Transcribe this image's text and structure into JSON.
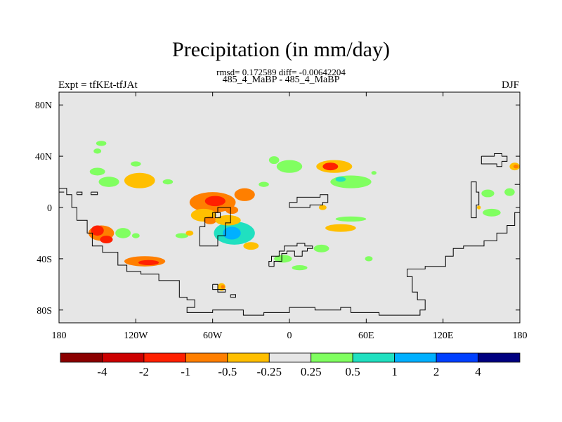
{
  "header": {
    "title": "Precipitation (in mm/day)",
    "stats": "rmsd= 0.172589 diff= -0.00642204",
    "comparison": "485_4_MaBP - 485_4_MaBP",
    "experiment": "Expt = tfKEt-tfJAt",
    "season": "DJF"
  },
  "chart_data": {
    "type": "heatmap",
    "title": "Precipitation (in mm/day)",
    "lon_range": [
      -180,
      180
    ],
    "lat_range": [
      -90,
      90
    ],
    "x_ticks": [
      {
        "value": -180,
        "label": "180"
      },
      {
        "value": -120,
        "label": "120W"
      },
      {
        "value": -60,
        "label": "60W"
      },
      {
        "value": 0,
        "label": "0"
      },
      {
        "value": 60,
        "label": "60E"
      },
      {
        "value": 120,
        "label": "120E"
      },
      {
        "value": 180,
        "label": "180"
      }
    ],
    "y_ticks": [
      {
        "value": 80,
        "label": "80N"
      },
      {
        "value": 40,
        "label": "40N"
      },
      {
        "value": 0,
        "label": "0"
      },
      {
        "value": -40,
        "label": "40S"
      },
      {
        "value": -80,
        "label": "80S"
      }
    ],
    "background_color": "#e6e6e6",
    "colorbar": {
      "colors": [
        "#8b0000",
        "#cc0000",
        "#ff2000",
        "#ff7f00",
        "#ffbf00",
        "#e6e6e6",
        "#80ff60",
        "#20e0c0",
        "#00b0ff",
        "#0040ff",
        "#000080"
      ],
      "labels": [
        "-4",
        "-2",
        "-1",
        "-0.5",
        "-0.25",
        "0.25",
        "0.5",
        "1",
        "2",
        "4"
      ]
    },
    "anomalies": [
      {
        "lon": -147,
        "lat": -20,
        "rlon": 10,
        "rlat": 6,
        "level": "-0.5"
      },
      {
        "lon": -150,
        "lat": -18,
        "rlon": 5,
        "rlat": 4,
        "level": "-1"
      },
      {
        "lon": -143,
        "lat": -25,
        "rlon": 5,
        "rlat": 3,
        "level": "-1"
      },
      {
        "lon": -130,
        "lat": -20,
        "rlon": 6,
        "rlat": 4,
        "level": "0.25"
      },
      {
        "lon": -113,
        "lat": -42,
        "rlon": 16,
        "rlat": 4,
        "level": "-0.5"
      },
      {
        "lon": -110,
        "lat": -43,
        "rlon": 8,
        "rlat": 2,
        "level": "-1"
      },
      {
        "lon": -117,
        "lat": 21,
        "rlon": 12,
        "rlat": 6,
        "level": "-0.25"
      },
      {
        "lon": -141,
        "lat": 20,
        "rlon": 8,
        "rlat": 4,
        "level": "0.25"
      },
      {
        "lon": -150,
        "lat": 28,
        "rlon": 6,
        "rlat": 3,
        "level": "0.25"
      },
      {
        "lon": -147,
        "lat": 50,
        "rlon": 4,
        "rlat": 2,
        "level": "0.25"
      },
      {
        "lon": -150,
        "lat": 44,
        "rlon": 3,
        "rlat": 2,
        "level": "0.25"
      },
      {
        "lon": -120,
        "lat": 34,
        "rlon": 4,
        "rlat": 2,
        "level": "0.25"
      },
      {
        "lon": -60,
        "lat": 4,
        "rlon": 18,
        "rlat": 8,
        "level": "-0.5"
      },
      {
        "lon": -58,
        "lat": 5,
        "rlon": 8,
        "rlat": 4,
        "level": "-1"
      },
      {
        "lon": -35,
        "lat": 10,
        "rlon": 8,
        "rlat": 5,
        "level": "-0.5"
      },
      {
        "lon": -67,
        "lat": -6,
        "rlon": 10,
        "rlat": 5,
        "level": "-0.25"
      },
      {
        "lon": -62,
        "lat": -10,
        "rlon": 5,
        "rlat": 3,
        "level": "-0.5"
      },
      {
        "lon": -43,
        "lat": -20,
        "rlon": 16,
        "rlat": 9,
        "level": "0.5"
      },
      {
        "lon": -45,
        "lat": -20,
        "rlon": 7,
        "rlat": 5,
        "level": "1"
      },
      {
        "lon": -48,
        "lat": -10,
        "rlon": 10,
        "rlat": 4,
        "level": "-0.25"
      },
      {
        "lon": -45,
        "lat": -2,
        "rlon": 5,
        "rlat": 3,
        "level": "-0.5"
      },
      {
        "lon": -53,
        "lat": -62,
        "rlon": 3,
        "rlat": 3,
        "level": "-0.25"
      },
      {
        "lon": -52,
        "lat": -62,
        "rlon": 1.5,
        "rlat": 1.5,
        "level": "-0.5"
      },
      {
        "lon": -84,
        "lat": -22,
        "rlon": 5,
        "rlat": 2,
        "level": "0.25"
      },
      {
        "lon": 35,
        "lat": 32,
        "rlon": 14,
        "rlat": 5,
        "level": "-0.25"
      },
      {
        "lon": 32,
        "lat": 32,
        "rlon": 6,
        "rlat": 3,
        "level": "-1"
      },
      {
        "lon": 48,
        "lat": 20,
        "rlon": 16,
        "rlat": 5,
        "level": "0.25"
      },
      {
        "lon": 40,
        "lat": 22,
        "rlon": 4,
        "rlat": 2,
        "level": "0.5"
      },
      {
        "lon": 0,
        "lat": 32,
        "rlon": 10,
        "rlat": 5,
        "level": "0.25"
      },
      {
        "lon": -12,
        "lat": 37,
        "rlon": 4,
        "rlat": 3,
        "level": "0.25"
      },
      {
        "lon": 40,
        "lat": -16,
        "rlon": 12,
        "rlat": 3,
        "level": "-0.25"
      },
      {
        "lon": 48,
        "lat": -9,
        "rlon": 12,
        "rlat": 2,
        "level": "0.25"
      },
      {
        "lon": 25,
        "lat": -32,
        "rlon": 6,
        "rlat": 3,
        "level": "0.25"
      },
      {
        "lon": -5,
        "lat": -40,
        "rlon": 7,
        "rlat": 3,
        "level": "0.25"
      },
      {
        "lon": 8,
        "lat": -47,
        "rlon": 6,
        "rlat": 2,
        "level": "0.25"
      },
      {
        "lon": -30,
        "lat": -30,
        "rlon": 6,
        "rlat": 3,
        "level": "-0.25"
      },
      {
        "lon": 26,
        "lat": 0,
        "rlon": 3,
        "rlat": 2,
        "level": "-0.25"
      },
      {
        "lon": 158,
        "lat": -4,
        "rlon": 7,
        "rlat": 3,
        "level": "0.25"
      },
      {
        "lon": 155,
        "lat": 11,
        "rlon": 5,
        "rlat": 3,
        "level": "0.25"
      },
      {
        "lon": 172,
        "lat": 12,
        "rlon": 4,
        "rlat": 3,
        "level": "0.25"
      },
      {
        "lon": 176,
        "lat": 32,
        "rlon": 4,
        "rlat": 3,
        "level": "-0.25"
      },
      {
        "lon": 177,
        "lat": 32,
        "rlon": 2,
        "rlat": 1.5,
        "level": "-0.5"
      },
      {
        "lon": 148,
        "lat": 0,
        "rlon": 1.5,
        "rlat": 1.5,
        "level": "-0.25"
      },
      {
        "lon": -78,
        "lat": -20,
        "rlon": 3,
        "rlat": 2,
        "level": "-0.25"
      },
      {
        "lon": -120,
        "lat": -22,
        "rlon": 3,
        "rlat": 2,
        "level": "0.25"
      },
      {
        "lon": 62,
        "lat": -40,
        "rlon": 3,
        "rlat": 2,
        "level": "0.25"
      },
      {
        "lon": -95,
        "lat": 20,
        "rlon": 4,
        "rlat": 2,
        "level": "0.25"
      },
      {
        "lon": -20,
        "lat": 18,
        "rlon": 4,
        "rlat": 2,
        "level": "0.25"
      },
      {
        "lon": 66,
        "lat": 27,
        "rlon": 2,
        "rlat": 1.5,
        "level": "0.25"
      }
    ],
    "coastlines": [
      [
        [
          -180,
          15
        ],
        [
          -174,
          15
        ],
        [
          -174,
          10
        ],
        [
          -170,
          10
        ],
        [
          -170,
          0
        ],
        [
          -166,
          0
        ],
        [
          -166,
          -10
        ],
        [
          -158,
          -10
        ],
        [
          -158,
          -20
        ],
        [
          -154,
          -20
        ],
        [
          -154,
          -30
        ],
        [
          -146,
          -30
        ],
        [
          -146,
          -35
        ],
        [
          -134,
          -35
        ],
        [
          -134,
          -45
        ],
        [
          -127,
          -45
        ],
        [
          -127,
          -50
        ],
        [
          -116,
          -50
        ],
        [
          -116,
          -52
        ],
        [
          -102,
          -52
        ],
        [
          -102,
          -57
        ],
        [
          -86,
          -57
        ],
        [
          -86,
          -70
        ],
        [
          -80,
          -70
        ],
        [
          -80,
          -72
        ],
        [
          -74,
          -72
        ],
        [
          -74,
          -78
        ],
        [
          -80,
          -78
        ],
        [
          -80,
          -82
        ],
        [
          -60,
          -82
        ],
        [
          -60,
          -80
        ],
        [
          -36,
          -80
        ],
        [
          -36,
          -84
        ],
        [
          -20,
          -84
        ],
        [
          -20,
          -82
        ],
        [
          0,
          -82
        ],
        [
          0,
          -78
        ],
        [
          20,
          -78
        ],
        [
          20,
          -80
        ],
        [
          40,
          -80
        ],
        [
          40,
          -78
        ],
        [
          48,
          -78
        ],
        [
          48,
          -82
        ],
        [
          70,
          -82
        ],
        [
          70,
          -84
        ],
        [
          102,
          -84
        ],
        [
          102,
          -80
        ],
        [
          106,
          -80
        ],
        [
          106,
          -72
        ],
        [
          100,
          -72
        ],
        [
          100,
          -66
        ],
        [
          96,
          -66
        ],
        [
          96,
          -54
        ],
        [
          92,
          -54
        ],
        [
          92,
          -48
        ],
        [
          106,
          -48
        ],
        [
          106,
          -46
        ],
        [
          122,
          -46
        ],
        [
          122,
          -38
        ],
        [
          128,
          -38
        ],
        [
          128,
          -32
        ],
        [
          136,
          -32
        ],
        [
          136,
          -30
        ],
        [
          152,
          -30
        ],
        [
          152,
          -26
        ],
        [
          162,
          -26
        ],
        [
          162,
          -20
        ],
        [
          170,
          -20
        ],
        [
          170,
          -14
        ],
        [
          176,
          -14
        ],
        [
          176,
          -4
        ],
        [
          180,
          -4
        ]
      ],
      [
        [
          -180,
          12
        ],
        [
          -176,
          12
        ]
      ],
      [
        [
          -155,
          12
        ],
        [
          -150,
          12
        ],
        [
          -150,
          10
        ],
        [
          -155,
          10
        ],
        [
          -155,
          12
        ]
      ],
      [
        [
          -70,
          -24
        ],
        [
          -70,
          -15
        ],
        [
          -66,
          -15
        ],
        [
          -66,
          -8
        ],
        [
          -60,
          -8
        ],
        [
          -60,
          -4
        ],
        [
          -56,
          -4
        ],
        [
          -56,
          0
        ],
        [
          -46,
          0
        ],
        [
          -46,
          -12
        ],
        [
          -50,
          -12
        ],
        [
          -50,
          -22
        ],
        [
          -56,
          -22
        ],
        [
          -56,
          -30
        ],
        [
          -70,
          -30
        ],
        [
          -70,
          -24
        ]
      ],
      [
        [
          -58,
          -8
        ],
        [
          -54,
          -8
        ],
        [
          -54,
          -4
        ],
        [
          -58,
          -4
        ],
        [
          -58,
          -8
        ]
      ],
      [
        [
          0,
          4
        ],
        [
          6,
          4
        ],
        [
          6,
          8
        ],
        [
          24,
          8
        ],
        [
          24,
          10
        ],
        [
          30,
          10
        ],
        [
          30,
          4
        ],
        [
          26,
          4
        ],
        [
          26,
          2
        ],
        [
          16,
          2
        ],
        [
          16,
          0
        ],
        [
          0,
          0
        ],
        [
          0,
          4
        ]
      ],
      [
        [
          -16,
          -46
        ],
        [
          -12,
          -46
        ],
        [
          -12,
          -42
        ],
        [
          -6,
          -42
        ],
        [
          -6,
          -36
        ],
        [
          -2,
          -36
        ],
        [
          -2,
          -34
        ],
        [
          4,
          -34
        ],
        [
          4,
          -38
        ],
        [
          10,
          -38
        ],
        [
          10,
          -34
        ],
        [
          14,
          -34
        ],
        [
          14,
          -32
        ],
        [
          18,
          -32
        ],
        [
          18,
          -30
        ],
        [
          12,
          -30
        ],
        [
          12,
          -28
        ],
        [
          6,
          -28
        ],
        [
          6,
          -30
        ],
        [
          -4,
          -30
        ],
        [
          -4,
          -34
        ],
        [
          -8,
          -34
        ],
        [
          -8,
          -38
        ],
        [
          -14,
          -38
        ],
        [
          -14,
          -42
        ],
        [
          -16,
          -42
        ],
        [
          -16,
          -46
        ]
      ],
      [
        [
          -60,
          -60
        ],
        [
          -56,
          -60
        ],
        [
          -56,
          -64
        ],
        [
          -50,
          -64
        ],
        [
          -50,
          -66
        ],
        [
          -56,
          -66
        ],
        [
          -56,
          -64
        ],
        [
          -60,
          -64
        ],
        [
          -60,
          -60
        ]
      ],
      [
        [
          -46,
          -68
        ],
        [
          -42,
          -68
        ],
        [
          -42,
          -70
        ],
        [
          -46,
          -70
        ],
        [
          -46,
          -68
        ]
      ],
      [
        [
          150,
          40
        ],
        [
          160,
          40
        ],
        [
          160,
          42
        ],
        [
          166,
          42
        ],
        [
          166,
          40
        ],
        [
          170,
          40
        ],
        [
          170,
          36
        ],
        [
          166,
          36
        ],
        [
          166,
          32
        ],
        [
          162,
          32
        ],
        [
          162,
          34
        ],
        [
          150,
          34
        ],
        [
          150,
          40
        ]
      ],
      [
        [
          142,
          -8
        ],
        [
          142,
          20
        ],
        [
          146,
          20
        ],
        [
          146,
          12
        ],
        [
          148,
          12
        ],
        [
          148,
          2
        ],
        [
          146,
          2
        ],
        [
          146,
          -8
        ],
        [
          142,
          -8
        ]
      ],
      [
        [
          176,
          18
        ],
        [
          180,
          18
        ]
      ],
      [
        [
          -166,
          10
        ],
        [
          -162,
          10
        ],
        [
          -162,
          12
        ],
        [
          -166,
          12
        ],
        [
          -166,
          10
        ]
      ]
    ]
  }
}
